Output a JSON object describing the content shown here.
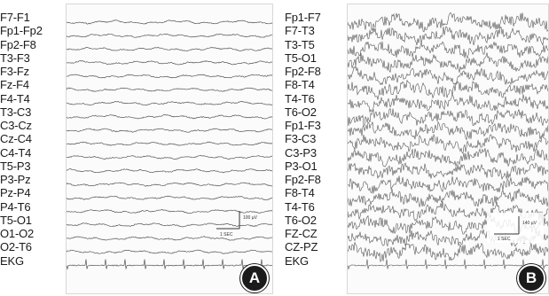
{
  "panels": [
    {
      "badge": "A",
      "channels": [
        "F7-F1",
        "Fp1-Fp2",
        "Fp2-F8",
        "T3-F3",
        "F3-Fz",
        "Fz-F4",
        "F4-T4",
        "T3-C3",
        "C3-Cz",
        "Cz-C4",
        "C4-T4",
        "T5-P3",
        "P3-Pz",
        "Pz-P4",
        "P4-T6",
        "T5-O1",
        "O1-O2",
        "O2-T6",
        "EKG"
      ],
      "scale_amplitude": "100 µV",
      "scale_time": "1 SEC"
    },
    {
      "badge": "B",
      "channels": [
        "Fp1-F7",
        "F7-T3",
        "T3-T5",
        "T5-O1",
        "Fp2-F8",
        "F8-T4",
        "T4-T6",
        "T6-O2",
        "Fp1-F3",
        "F3-C3",
        "C3-P3",
        "P3-O1",
        "Fp2-F8",
        "F8-T4",
        "T4-T6",
        "T6-O2",
        "FZ-CZ",
        "CZ-PZ",
        "EKG"
      ],
      "scale_amplitude": "140 µV",
      "scale_time": "1 SEC"
    }
  ],
  "colors": {
    "trace": "#555555",
    "badge_bg": "#1b1b1b",
    "badge_fg": "#ffffff"
  }
}
